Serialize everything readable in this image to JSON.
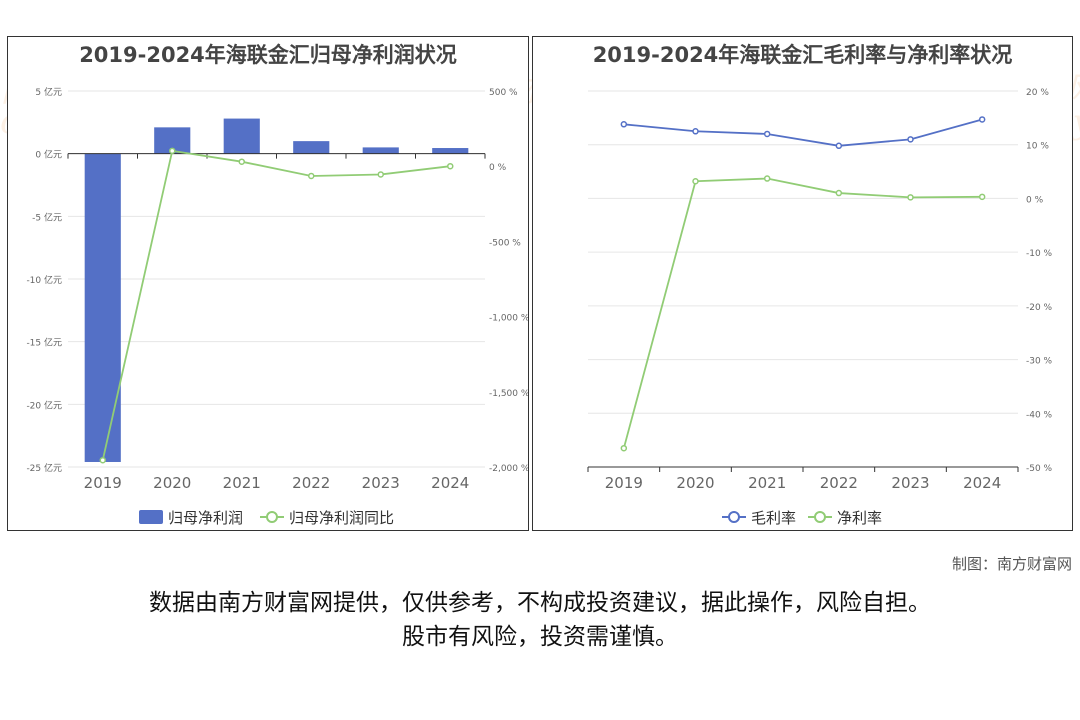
{
  "chart_data": [
    {
      "type": "bar",
      "title": "2019-2024年海联金汇归母净利润状况",
      "categories": [
        "2019",
        "2020",
        "2021",
        "2022",
        "2023",
        "2024"
      ],
      "series": [
        {
          "name": "归母净利润",
          "kind": "bar",
          "axis": "left",
          "color": "#5470c6",
          "values": [
            -24.6,
            2.1,
            2.8,
            1.0,
            0.5,
            0.45
          ]
        },
        {
          "name": "归母净利润同比",
          "kind": "line",
          "axis": "right",
          "color": "#91cc75",
          "values": [
            -1955,
            102,
            30,
            -65,
            -55,
            0
          ]
        }
      ],
      "left_axis": {
        "ylim": [
          -25,
          5
        ],
        "ticks": [
          5,
          0,
          -5,
          -10,
          -15,
          -20,
          -25
        ],
        "tick_labels": [
          "5 亿元",
          "0 亿元",
          "-5 亿元",
          "-10 亿元",
          "-15 亿元",
          "-20 亿元",
          "-25 亿元"
        ]
      },
      "right_axis": {
        "ylim": [
          -2000,
          500
        ],
        "ticks": [
          500,
          0,
          -500,
          -1000,
          -1500,
          -2000
        ],
        "tick_labels": [
          "500 %",
          "0 %",
          "-500 %",
          "-1,000 %",
          "-1,500 %",
          "-2,000 %"
        ]
      },
      "grid": true,
      "legend": "bottom"
    },
    {
      "type": "line",
      "title": "2019-2024年海联金汇毛利率与净利率状况",
      "categories": [
        "2019",
        "2020",
        "2021",
        "2022",
        "2023",
        "2024"
      ],
      "series": [
        {
          "name": "毛利率",
          "color": "#5470c6",
          "values": [
            13.8,
            12.5,
            12.0,
            9.8,
            11.0,
            14.7
          ]
        },
        {
          "name": "净利率",
          "color": "#91cc75",
          "values": [
            -46.5,
            3.2,
            3.7,
            1.0,
            0.2,
            0.3
          ]
        }
      ],
      "right_axis": {
        "ylim": [
          -50,
          20
        ],
        "ticks": [
          20,
          10,
          0,
          -10,
          -20,
          -30,
          -40,
          -50
        ],
        "tick_labels": [
          "20 %",
          "10 %",
          "0 %",
          "-10 %",
          "-20 %",
          "-30 %",
          "-40 %",
          "-50 %"
        ]
      },
      "grid": true,
      "legend": "bottom"
    }
  ],
  "watermark": {
    "cn": "南方财富网",
    "en": "outhmoney.com"
  },
  "credit": "制图：南方财富网",
  "disclaimer": [
    "数据由南方财富网提供，仅供参考，不构成投资建议，据此操作，风险自担。",
    "股市有风险，投资需谨慎。"
  ]
}
